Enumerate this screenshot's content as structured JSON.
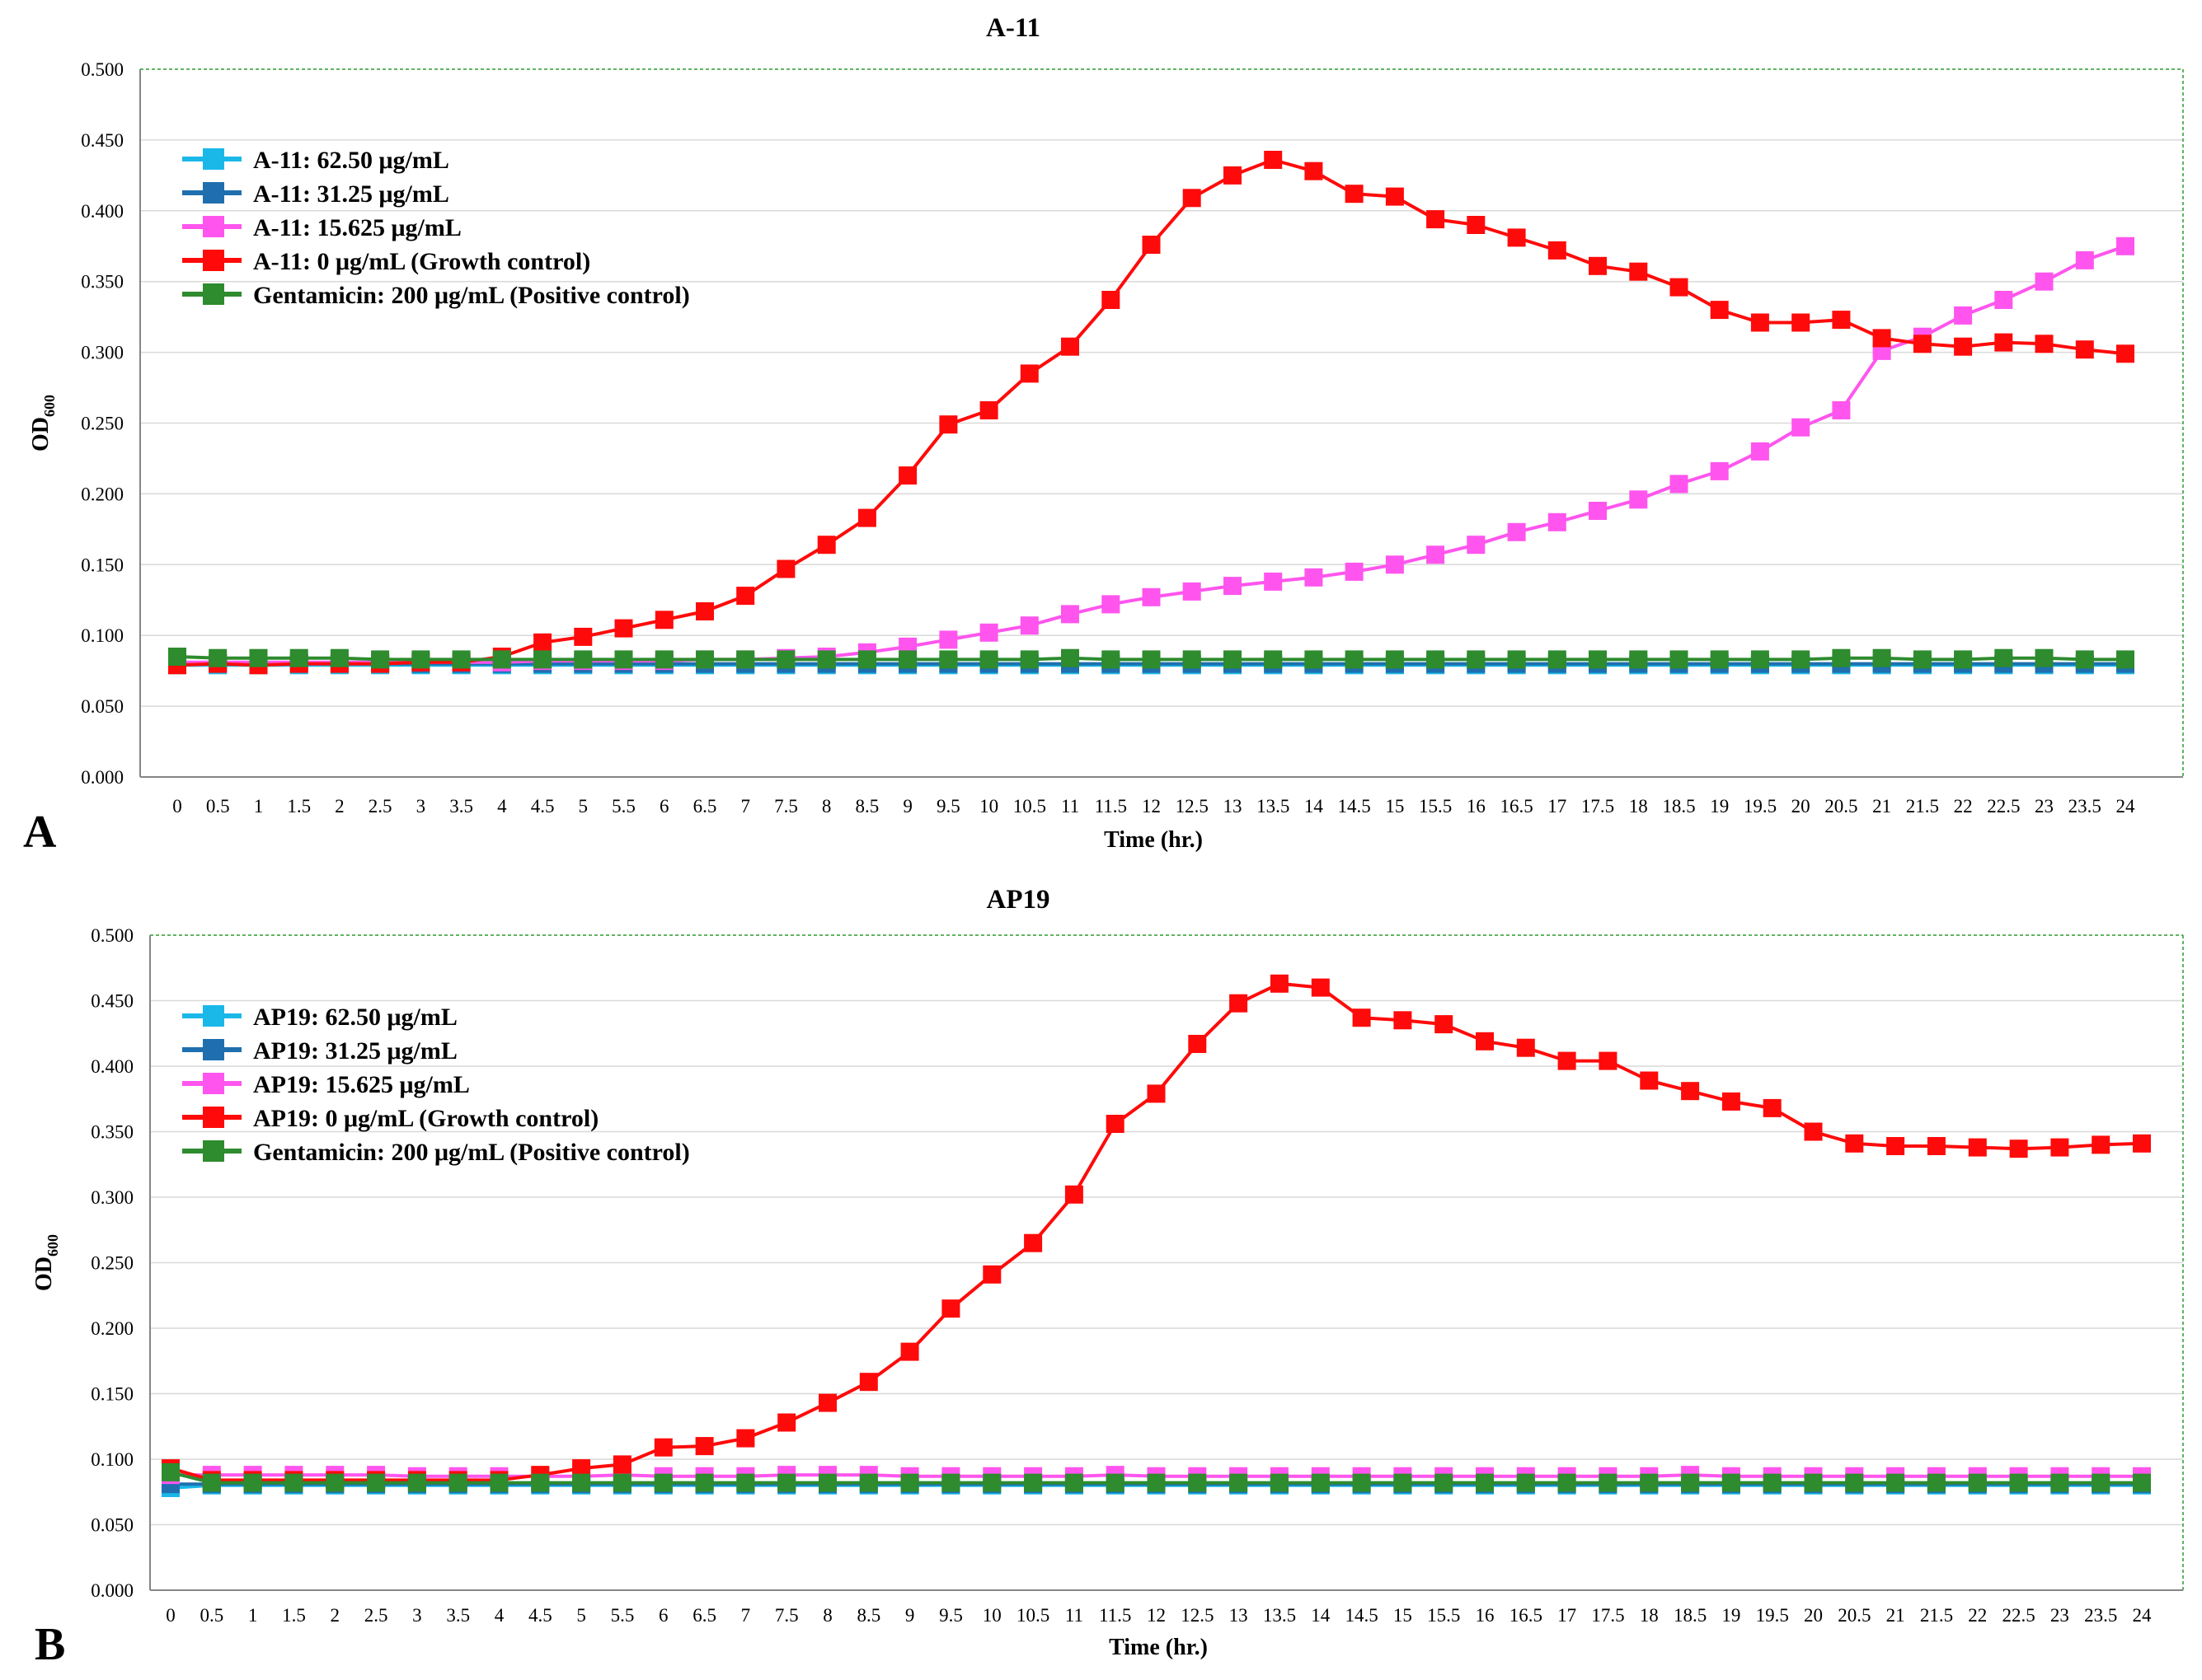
{
  "chart_data": [
    {
      "type": "line",
      "panel_label": "A",
      "title": "A-11",
      "xlabel": "Time (hr.)",
      "ylabel": "OD",
      "ylabel_sub": "600",
      "ylim": [
        0,
        0.5
      ],
      "yticks": [
        "0.000",
        "0.050",
        "0.100",
        "0.150",
        "0.200",
        "0.250",
        "0.300",
        "0.350",
        "0.400",
        "0.450",
        "0.500"
      ],
      "legend_position": "top-left",
      "categories": [
        "0",
        "0.5",
        "1",
        "1.5",
        "2",
        "2.5",
        "3",
        "3.5",
        "4",
        "4.5",
        "5",
        "5.5",
        "6",
        "6.5",
        "7",
        "7.5",
        "8",
        "8.5",
        "9",
        "9.5",
        "10",
        "10.5",
        "11",
        "11.5",
        "12",
        "12.5",
        "13",
        "13.5",
        "14",
        "14.5",
        "15",
        "15.5",
        "16",
        "16.5",
        "17",
        "17.5",
        "18",
        "18.5",
        "19",
        "19.5",
        "20",
        "20.5",
        "21",
        "21.5",
        "22",
        "22.5",
        "23",
        "23.5",
        "24"
      ],
      "series": [
        {
          "name": "A-11: 62.50 μg/mL",
          "color": "#1ab8e8",
          "values": [
            0.079,
            0.079,
            0.079,
            0.079,
            0.079,
            0.079,
            0.079,
            0.079,
            0.079,
            0.079,
            0.079,
            0.079,
            0.079,
            0.079,
            0.079,
            0.079,
            0.079,
            0.079,
            0.079,
            0.079,
            0.079,
            0.079,
            0.079,
            0.079,
            0.079,
            0.079,
            0.079,
            0.079,
            0.079,
            0.079,
            0.079,
            0.079,
            0.079,
            0.079,
            0.079,
            0.079,
            0.079,
            0.079,
            0.079,
            0.079,
            0.079,
            0.079,
            0.079,
            0.079,
            0.079,
            0.079,
            0.079,
            0.079,
            0.079
          ]
        },
        {
          "name": "A-11: 31.25 μg/mL",
          "color": "#1f6fae",
          "values": [
            0.08,
            0.08,
            0.08,
            0.08,
            0.08,
            0.08,
            0.08,
            0.08,
            0.08,
            0.08,
            0.08,
            0.08,
            0.08,
            0.08,
            0.08,
            0.08,
            0.08,
            0.08,
            0.08,
            0.08,
            0.08,
            0.08,
            0.08,
            0.08,
            0.08,
            0.08,
            0.08,
            0.08,
            0.08,
            0.08,
            0.08,
            0.08,
            0.08,
            0.08,
            0.08,
            0.08,
            0.08,
            0.08,
            0.08,
            0.08,
            0.08,
            0.08,
            0.08,
            0.08,
            0.08,
            0.08,
            0.08,
            0.08,
            0.08
          ]
        },
        {
          "name": "A-11: 15.625 μg/mL",
          "color": "#ff55ee",
          "values": [
            0.081,
            0.081,
            0.081,
            0.081,
            0.081,
            0.081,
            0.081,
            0.081,
            0.081,
            0.082,
            0.082,
            0.082,
            0.082,
            0.083,
            0.083,
            0.084,
            0.085,
            0.088,
            0.092,
            0.097,
            0.102,
            0.107,
            0.115,
            0.122,
            0.127,
            0.131,
            0.135,
            0.138,
            0.141,
            0.145,
            0.15,
            0.157,
            0.164,
            0.173,
            0.18,
            0.188,
            0.196,
            0.207,
            0.216,
            0.23,
            0.247,
            0.259,
            0.301,
            0.311,
            0.326,
            0.337,
            0.35,
            0.365,
            0.375
          ]
        },
        {
          "name": "A-11: 0 μg/mL (Growth control)",
          "color": "#ff0a0a",
          "values": [
            0.079,
            0.08,
            0.079,
            0.08,
            0.08,
            0.08,
            0.081,
            0.081,
            0.085,
            0.095,
            0.099,
            0.105,
            0.111,
            0.117,
            0.128,
            0.147,
            0.164,
            0.183,
            0.213,
            0.249,
            0.259,
            0.285,
            0.304,
            0.337,
            0.376,
            0.409,
            0.425,
            0.436,
            0.428,
            0.412,
            0.41,
            0.394,
            0.39,
            0.381,
            0.372,
            0.361,
            0.357,
            0.346,
            0.33,
            0.321,
            0.321,
            0.323,
            0.31,
            0.306,
            0.304,
            0.307,
            0.306,
            0.302,
            0.299
          ]
        },
        {
          "name": "Gentamicin: 200 μg/mL (Positive control)",
          "color": "#2e8b2e",
          "values": [
            0.085,
            0.084,
            0.084,
            0.084,
            0.084,
            0.083,
            0.083,
            0.083,
            0.083,
            0.083,
            0.083,
            0.083,
            0.083,
            0.083,
            0.083,
            0.083,
            0.083,
            0.083,
            0.083,
            0.083,
            0.083,
            0.083,
            0.084,
            0.083,
            0.083,
            0.083,
            0.083,
            0.083,
            0.083,
            0.083,
            0.083,
            0.083,
            0.083,
            0.083,
            0.083,
            0.083,
            0.083,
            0.083,
            0.083,
            0.083,
            0.083,
            0.084,
            0.084,
            0.083,
            0.083,
            0.084,
            0.084,
            0.083,
            0.083
          ]
        }
      ]
    },
    {
      "type": "line",
      "panel_label": "B",
      "title": "AP19",
      "xlabel": "Time (hr.)",
      "ylabel": "OD",
      "ylabel_sub": "600",
      "ylim": [
        0,
        0.5
      ],
      "yticks": [
        "0.000",
        "0.050",
        "0.100",
        "0.150",
        "0.200",
        "0.250",
        "0.300",
        "0.350",
        "0.400",
        "0.450",
        "0.500"
      ],
      "legend_position": "top-left",
      "categories": [
        "0",
        "0.5",
        "1",
        "1.5",
        "2",
        "2.5",
        "3",
        "3.5",
        "4",
        "4.5",
        "5",
        "5.5",
        "6",
        "6.5",
        "7",
        "7.5",
        "8",
        "8.5",
        "9",
        "9.5",
        "10",
        "10.5",
        "11",
        "11.5",
        "12",
        "12.5",
        "13",
        "13.5",
        "14",
        "14.5",
        "15",
        "15.5",
        "16",
        "16.5",
        "17",
        "17.5",
        "18",
        "18.5",
        "19",
        "19.5",
        "20",
        "20.5",
        "21",
        "21.5",
        "22",
        "22.5",
        "23",
        "23.5",
        "24"
      ],
      "series": [
        {
          "name": "AP19: 62.50 μg/mL",
          "color": "#1ab8e8",
          "values": [
            0.078,
            0.08,
            0.08,
            0.08,
            0.08,
            0.08,
            0.08,
            0.08,
            0.08,
            0.08,
            0.08,
            0.08,
            0.08,
            0.08,
            0.08,
            0.08,
            0.08,
            0.08,
            0.08,
            0.08,
            0.08,
            0.08,
            0.08,
            0.08,
            0.08,
            0.08,
            0.08,
            0.08,
            0.08,
            0.08,
            0.08,
            0.08,
            0.08,
            0.08,
            0.08,
            0.08,
            0.08,
            0.08,
            0.08,
            0.08,
            0.08,
            0.08,
            0.08,
            0.08,
            0.08,
            0.08,
            0.08,
            0.08,
            0.08
          ]
        },
        {
          "name": "AP19: 31.25 μg/mL",
          "color": "#1f6fae",
          "values": [
            0.081,
            0.081,
            0.081,
            0.081,
            0.081,
            0.081,
            0.081,
            0.081,
            0.081,
            0.081,
            0.081,
            0.081,
            0.081,
            0.081,
            0.081,
            0.081,
            0.081,
            0.081,
            0.081,
            0.081,
            0.081,
            0.081,
            0.081,
            0.081,
            0.081,
            0.081,
            0.081,
            0.081,
            0.081,
            0.081,
            0.081,
            0.081,
            0.081,
            0.081,
            0.081,
            0.081,
            0.081,
            0.081,
            0.081,
            0.081,
            0.081,
            0.081,
            0.081,
            0.081,
            0.081,
            0.081,
            0.081,
            0.081,
            0.081
          ]
        },
        {
          "name": "AP19: 15.625 μg/mL",
          "color": "#ff55ee",
          "values": [
            0.088,
            0.088,
            0.088,
            0.088,
            0.088,
            0.088,
            0.087,
            0.087,
            0.087,
            0.087,
            0.087,
            0.088,
            0.087,
            0.087,
            0.087,
            0.088,
            0.088,
            0.088,
            0.087,
            0.087,
            0.087,
            0.087,
            0.087,
            0.088,
            0.087,
            0.087,
            0.087,
            0.087,
            0.087,
            0.087,
            0.087,
            0.087,
            0.087,
            0.087,
            0.087,
            0.087,
            0.087,
            0.088,
            0.087,
            0.087,
            0.087,
            0.087,
            0.087,
            0.087,
            0.087,
            0.087,
            0.087,
            0.087,
            0.087
          ]
        },
        {
          "name": "AP19: 0 μg/mL (Growth control)",
          "color": "#ff0a0a",
          "values": [
            0.093,
            0.084,
            0.084,
            0.084,
            0.084,
            0.084,
            0.084,
            0.084,
            0.084,
            0.088,
            0.093,
            0.096,
            0.109,
            0.11,
            0.116,
            0.128,
            0.143,
            0.159,
            0.182,
            0.215,
            0.241,
            0.265,
            0.302,
            0.356,
            0.379,
            0.417,
            0.448,
            0.463,
            0.46,
            0.437,
            0.435,
            0.432,
            0.419,
            0.414,
            0.404,
            0.404,
            0.389,
            0.381,
            0.373,
            0.368,
            0.35,
            0.341,
            0.339,
            0.339,
            0.338,
            0.337,
            0.338,
            0.34,
            0.341
          ]
        },
        {
          "name": "Gentamicin: 200 μg/mL (Positive control)",
          "color": "#2e8b2e",
          "values": [
            0.09,
            0.082,
            0.082,
            0.082,
            0.082,
            0.082,
            0.082,
            0.082,
            0.082,
            0.082,
            0.082,
            0.082,
            0.082,
            0.082,
            0.082,
            0.082,
            0.082,
            0.082,
            0.082,
            0.082,
            0.082,
            0.082,
            0.082,
            0.082,
            0.082,
            0.082,
            0.082,
            0.082,
            0.082,
            0.082,
            0.082,
            0.082,
            0.082,
            0.082,
            0.082,
            0.082,
            0.082,
            0.082,
            0.082,
            0.082,
            0.082,
            0.082,
            0.082,
            0.082,
            0.082,
            0.082,
            0.082,
            0.082,
            0.082
          ]
        }
      ]
    }
  ]
}
